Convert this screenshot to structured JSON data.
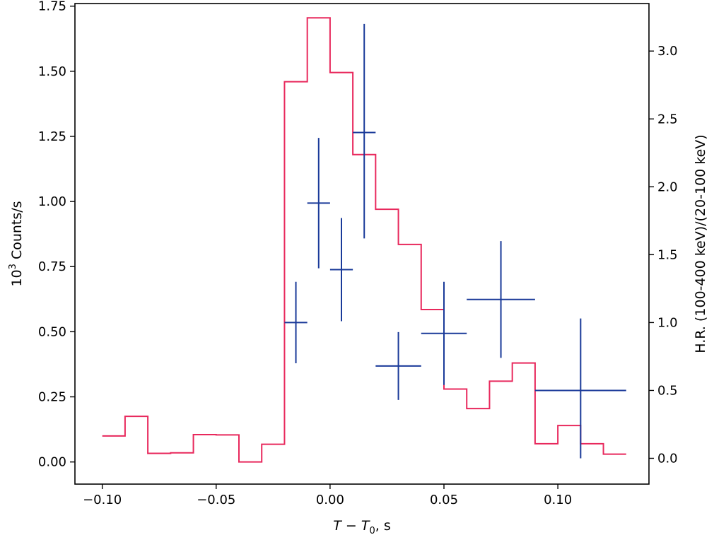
{
  "chart_data": {
    "type": "line",
    "xlabel": "T − T0, s",
    "ylabel_left": "10³ Counts/s",
    "ylabel_right": "H.R. (100-400 keV)/(20-100 keV)",
    "xlim": [
      -0.112,
      0.14
    ],
    "ylim_left": [
      -0.085,
      1.76
    ],
    "ylim_right": [
      -0.19,
      3.35
    ],
    "x_ticks": [
      -0.1,
      -0.05,
      0.0,
      0.05,
      0.1
    ],
    "x_tick_labels": [
      "−0.10",
      "−0.05",
      "0.00",
      "0.05",
      "0.10"
    ],
    "y_left_ticks": [
      0.0,
      0.25,
      0.5,
      0.75,
      1.0,
      1.25,
      1.5,
      1.75
    ],
    "y_left_tick_labels": [
      "0.00",
      "0.25",
      "0.50",
      "0.75",
      "1.00",
      "1.25",
      "1.50",
      "1.75"
    ],
    "y_right_ticks": [
      0.0,
      0.5,
      1.0,
      1.5,
      2.0,
      2.5,
      3.0
    ],
    "y_right_tick_labels": [
      "0.0",
      "0.5",
      "1.0",
      "1.5",
      "2.0",
      "2.5",
      "3.0"
    ],
    "grid": false,
    "series": [
      {
        "kind": "step",
        "axis": "left",
        "color": "#e8285c",
        "bin_edges": [
          -0.1,
          -0.09,
          -0.08,
          -0.07,
          -0.06,
          -0.05,
          -0.04,
          -0.03,
          -0.02,
          -0.01,
          0.0,
          0.01,
          0.02,
          0.03,
          0.04,
          0.05,
          0.06,
          0.07,
          0.08,
          0.09,
          0.1,
          0.11,
          0.12,
          0.13
        ],
        "values": [
          0.1,
          0.175,
          0.033,
          0.035,
          0.105,
          0.104,
          0.0,
          0.068,
          1.46,
          1.705,
          1.495,
          1.18,
          0.97,
          0.835,
          0.585,
          0.28,
          0.205,
          0.31,
          0.38,
          0.07,
          0.14,
          0.07,
          0.03
        ]
      },
      {
        "kind": "errorbar",
        "axis": "right",
        "color": "#1a3a99",
        "points": [
          {
            "x": -0.015,
            "xerr": 0.005,
            "y": 1.0,
            "yerr_low": 0.3,
            "yerr_high": 0.3
          },
          {
            "x": -0.005,
            "xerr": 0.005,
            "y": 1.88,
            "yerr_low": 0.48,
            "yerr_high": 0.48
          },
          {
            "x": 0.005,
            "xerr": 0.005,
            "y": 1.39,
            "yerr_low": 0.38,
            "yerr_high": 0.38
          },
          {
            "x": 0.015,
            "xerr": 0.005,
            "y": 2.4,
            "yerr_low": 0.78,
            "yerr_high": 0.8
          },
          {
            "x": 0.03,
            "xerr": 0.01,
            "y": 0.68,
            "yerr_low": 0.25,
            "yerr_high": 0.25
          },
          {
            "x": 0.05,
            "xerr": 0.01,
            "y": 0.92,
            "yerr_low": 0.38,
            "yerr_high": 0.38
          },
          {
            "x": 0.075,
            "xerr": 0.015,
            "y": 1.17,
            "yerr_low": 0.43,
            "yerr_high": 0.43
          },
          {
            "x": 0.11,
            "xerr": 0.02,
            "y": 0.5,
            "yerr_low": 0.5,
            "yerr_high": 0.53
          }
        ]
      }
    ]
  }
}
